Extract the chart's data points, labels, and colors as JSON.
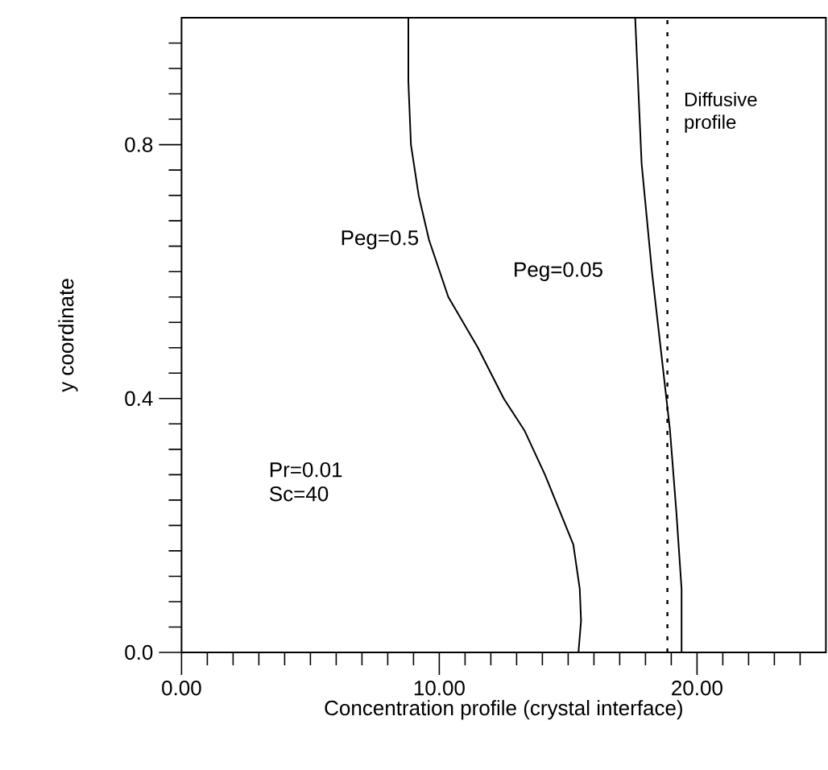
{
  "chart_data": {
    "type": "line",
    "xlabel": "Concentration profile (crystal interface)",
    "ylabel": "y coordinate",
    "xlim": [
      0,
      25
    ],
    "ylim": [
      0,
      1
    ],
    "xticks": [
      {
        "value": 0,
        "label": "0.00"
      },
      {
        "value": 1,
        "label": null
      },
      {
        "value": 2,
        "label": null
      },
      {
        "value": 3,
        "label": null
      },
      {
        "value": 4,
        "label": null
      },
      {
        "value": 5,
        "label": null
      },
      {
        "value": 6,
        "label": null
      },
      {
        "value": 7,
        "label": null
      },
      {
        "value": 8,
        "label": null
      },
      {
        "value": 9,
        "label": null
      },
      {
        "value": 10,
        "label": "10.00"
      },
      {
        "value": 11,
        "label": null
      },
      {
        "value": 12,
        "label": null
      },
      {
        "value": 13,
        "label": null
      },
      {
        "value": 14,
        "label": null
      },
      {
        "value": 15,
        "label": null
      },
      {
        "value": 16,
        "label": null
      },
      {
        "value": 17,
        "label": null
      },
      {
        "value": 18,
        "label": null
      },
      {
        "value": 19,
        "label": null
      },
      {
        "value": 20,
        "label": "20.00"
      },
      {
        "value": 21,
        "label": null
      },
      {
        "value": 22,
        "label": null
      },
      {
        "value": 23,
        "label": null
      },
      {
        "value": 24,
        "label": null
      }
    ],
    "yticks": [
      {
        "value": 0,
        "label": "0.0"
      },
      {
        "value": 0.04,
        "label": null
      },
      {
        "value": 0.08,
        "label": null
      },
      {
        "value": 0.12,
        "label": null
      },
      {
        "value": 0.16,
        "label": null
      },
      {
        "value": 0.2,
        "label": null
      },
      {
        "value": 0.24,
        "label": null
      },
      {
        "value": 0.28,
        "label": null
      },
      {
        "value": 0.32,
        "label": null
      },
      {
        "value": 0.36,
        "label": null
      },
      {
        "value": 0.4,
        "label": "0.4"
      },
      {
        "value": 0.44,
        "label": null
      },
      {
        "value": 0.48,
        "label": null
      },
      {
        "value": 0.52,
        "label": null
      },
      {
        "value": 0.56,
        "label": null
      },
      {
        "value": 0.6,
        "label": null
      },
      {
        "value": 0.64,
        "label": null
      },
      {
        "value": 0.68,
        "label": null
      },
      {
        "value": 0.72,
        "label": null
      },
      {
        "value": 0.76,
        "label": null
      },
      {
        "value": 0.8,
        "label": "0.8"
      },
      {
        "value": 0.84,
        "label": null
      },
      {
        "value": 0.88,
        "label": null
      },
      {
        "value": 0.92,
        "label": null
      },
      {
        "value": 0.96,
        "label": null
      }
    ],
    "series": [
      {
        "name": "Peg=0.5",
        "color": "#000000",
        "x": [
          8.8,
          8.8,
          8.9,
          9.2,
          9.6,
          10.35,
          11.5,
          12.5,
          13.3,
          14.1,
          14.7,
          15.2,
          15.45,
          15.5,
          15.4
        ],
        "values": [
          1.0,
          0.9,
          0.8,
          0.72,
          0.65,
          0.56,
          0.48,
          0.4,
          0.35,
          0.28,
          0.22,
          0.17,
          0.1,
          0.05,
          0
        ]
      },
      {
        "name": "Peg=0.05",
        "color": "#000000",
        "x": [
          17.6,
          17.85,
          18.25,
          18.7,
          18.95,
          19.2,
          19.4,
          19.4
        ],
        "values": [
          1.0,
          0.77,
          0.6,
          0.44,
          0.35,
          0.22,
          0.1,
          0
        ]
      }
    ],
    "ref_lines": [
      {
        "axis": "x",
        "value": 18.85,
        "label": "Diffusive profile",
        "color": "#000000",
        "line_style": "dotted"
      }
    ],
    "annotations": [
      "Pr=0.01",
      "Sc=40"
    ],
    "grid": false,
    "marker": "none",
    "line_style": "solid"
  }
}
